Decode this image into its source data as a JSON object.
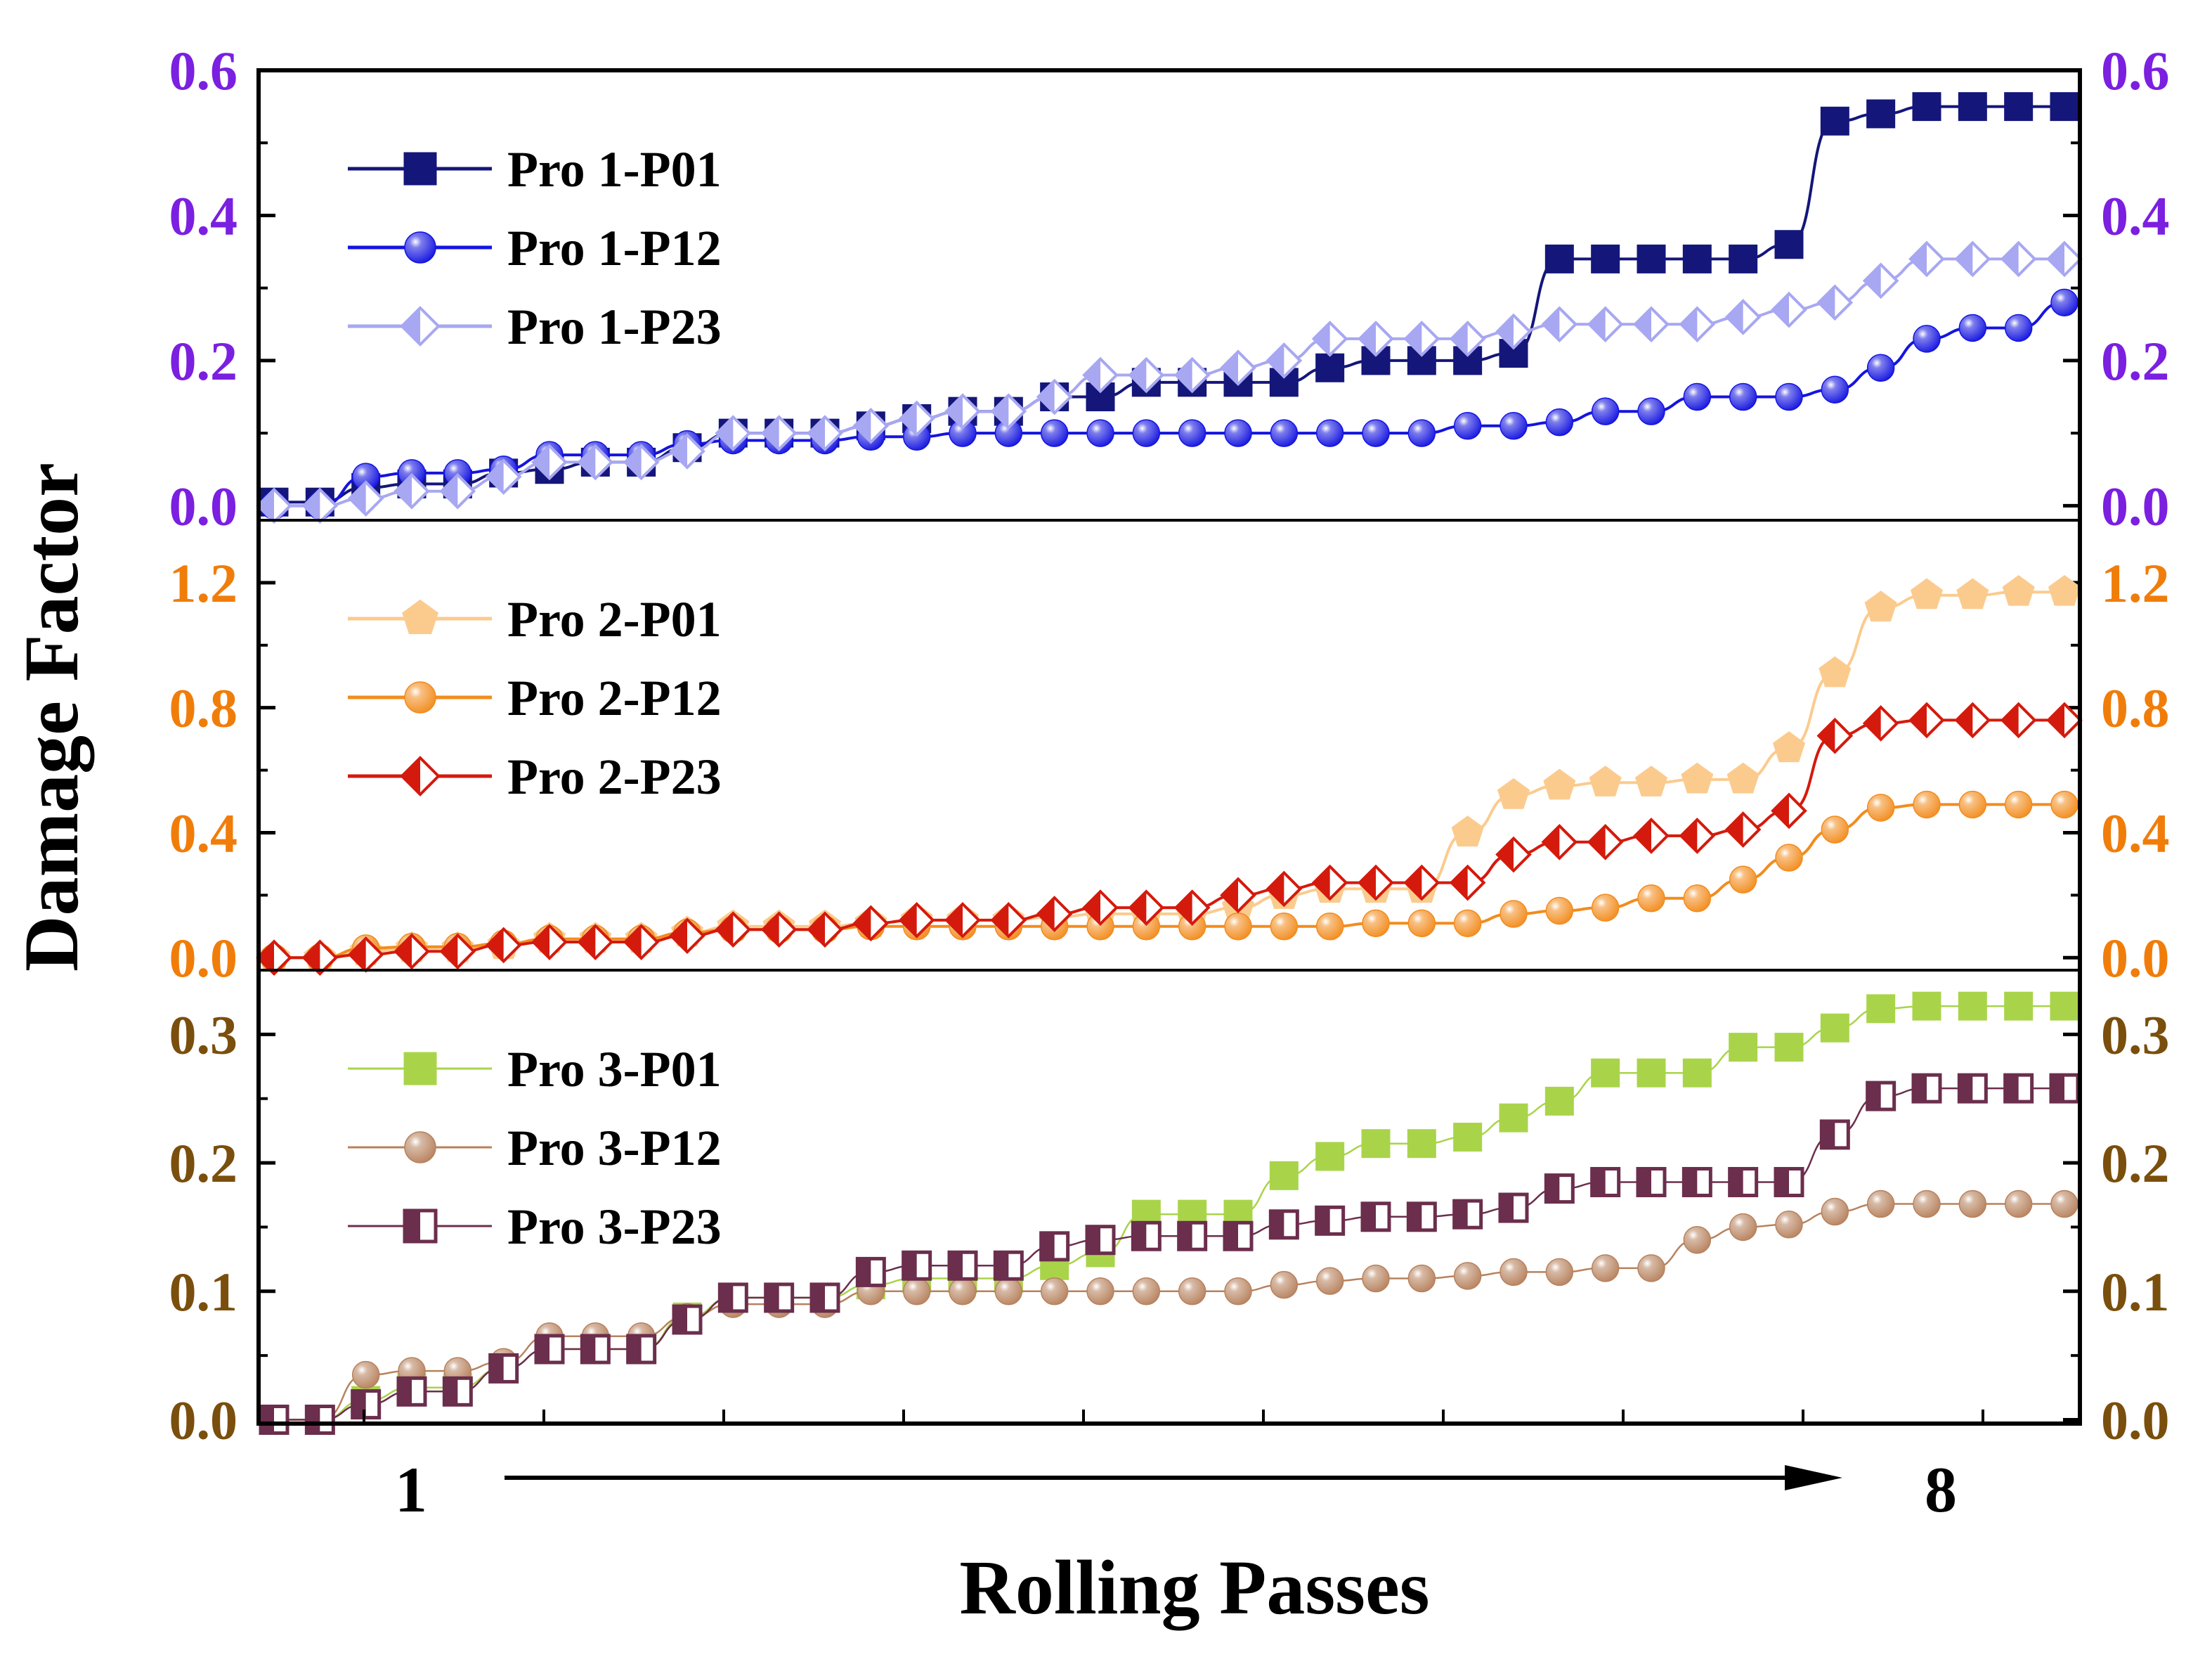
{
  "chart_data": {
    "type": "line",
    "xlabel": "Rolling Passes",
    "ylabel": "Damage Factor",
    "pass_start_label": "1",
    "pass_end_label": "8",
    "x_range": [
      1,
      40
    ],
    "panels": [
      {
        "name": "panel-1",
        "tick_color": "#7B1FE0",
        "ylim": [
          -0.02,
          0.6
        ],
        "yticks": [
          0.0,
          0.2,
          0.4,
          0.6
        ],
        "ytick_labels": [
          "0.0",
          "0.2",
          "0.4",
          "0.6"
        ],
        "series": [
          {
            "name": "Pro 1-P01",
            "color": "#14167A",
            "marker": "square",
            "style": "filled",
            "values": [
              0.005,
              0.005,
              0.025,
              0.03,
              0.03,
              0.045,
              0.05,
              0.06,
              0.06,
              0.08,
              0.1,
              0.1,
              0.1,
              0.11,
              0.12,
              0.13,
              0.13,
              0.15,
              0.15,
              0.17,
              0.17,
              0.17,
              0.17,
              0.19,
              0.2,
              0.2,
              0.2,
              0.21,
              0.34,
              0.34,
              0.34,
              0.34,
              0.34,
              0.36,
              0.53,
              0.54,
              0.55,
              0.55,
              0.55,
              0.55
            ]
          },
          {
            "name": "Pro 1-P12",
            "color": "#1414E0",
            "marker": "circle",
            "style": "sphere",
            "values": [
              0.0,
              0.0,
              0.04,
              0.045,
              0.045,
              0.05,
              0.07,
              0.07,
              0.07,
              0.085,
              0.09,
              0.09,
              0.09,
              0.095,
              0.095,
              0.1,
              0.1,
              0.1,
              0.1,
              0.1,
              0.1,
              0.1,
              0.1,
              0.1,
              0.1,
              0.1,
              0.11,
              0.11,
              0.115,
              0.13,
              0.13,
              0.15,
              0.15,
              0.15,
              0.16,
              0.19,
              0.23,
              0.245,
              0.245,
              0.28
            ]
          },
          {
            "name": "Pro 1-P23",
            "color": "#A7A7F2",
            "marker": "diamond",
            "style": "half",
            "values": [
              0.0,
              0.0,
              0.01,
              0.02,
              0.02,
              0.04,
              0.06,
              0.06,
              0.06,
              0.075,
              0.1,
              0.1,
              0.1,
              0.11,
              0.12,
              0.13,
              0.13,
              0.15,
              0.18,
              0.18,
              0.18,
              0.19,
              0.2,
              0.23,
              0.23,
              0.23,
              0.23,
              0.24,
              0.25,
              0.25,
              0.25,
              0.25,
              0.26,
              0.27,
              0.28,
              0.31,
              0.34,
              0.34,
              0.34,
              0.34
            ]
          }
        ]
      },
      {
        "name": "panel-2",
        "tick_color": "#F07D0A",
        "ylim": [
          -0.04,
          1.4
        ],
        "yticks": [
          0.0,
          0.4,
          0.8,
          1.2
        ],
        "ytick_labels": [
          "0.0",
          "0.4",
          "0.8",
          "1.2"
        ],
        "series": [
          {
            "name": "Pro 2-P01",
            "color": "#FBCB8E",
            "marker": "pentagon",
            "style": "filled",
            "values": [
              0.0,
              0.0,
              0.02,
              0.03,
              0.03,
              0.04,
              0.06,
              0.06,
              0.06,
              0.08,
              0.1,
              0.1,
              0.1,
              0.11,
              0.12,
              0.12,
              0.12,
              0.13,
              0.14,
              0.14,
              0.14,
              0.16,
              0.2,
              0.22,
              0.22,
              0.22,
              0.4,
              0.52,
              0.55,
              0.56,
              0.56,
              0.57,
              0.57,
              0.67,
              0.91,
              1.12,
              1.16,
              1.16,
              1.17,
              1.17
            ]
          },
          {
            "name": "Pro 2-P12",
            "color": "#F28C1E",
            "marker": "circle",
            "style": "sphere",
            "values": [
              0.0,
              0.0,
              0.03,
              0.035,
              0.035,
              0.045,
              0.06,
              0.06,
              0.06,
              0.08,
              0.09,
              0.09,
              0.09,
              0.1,
              0.1,
              0.1,
              0.1,
              0.1,
              0.1,
              0.1,
              0.1,
              0.1,
              0.1,
              0.1,
              0.11,
              0.11,
              0.11,
              0.14,
              0.15,
              0.16,
              0.19,
              0.19,
              0.25,
              0.32,
              0.41,
              0.48,
              0.49,
              0.49,
              0.49,
              0.49
            ]
          },
          {
            "name": "Pro 2-P23",
            "color": "#D41A0C",
            "marker": "diamond",
            "style": "half",
            "values": [
              0.0,
              0.0,
              0.01,
              0.02,
              0.02,
              0.04,
              0.05,
              0.05,
              0.05,
              0.07,
              0.09,
              0.09,
              0.09,
              0.11,
              0.12,
              0.12,
              0.12,
              0.14,
              0.16,
              0.16,
              0.16,
              0.2,
              0.22,
              0.24,
              0.24,
              0.24,
              0.24,
              0.33,
              0.37,
              0.37,
              0.39,
              0.39,
              0.41,
              0.47,
              0.71,
              0.75,
              0.76,
              0.76,
              0.76,
              0.76
            ]
          }
        ]
      },
      {
        "name": "panel-3",
        "tick_color": "#7A4E0C",
        "ylim": [
          -0.003,
          0.35
        ],
        "yticks": [
          0.0,
          0.1,
          0.2,
          0.3
        ],
        "ytick_labels": [
          "0.0",
          "0.1",
          "0.2",
          "0.3"
        ],
        "series": [
          {
            "name": "Pro 3-P01",
            "color": "#A9D44A",
            "marker": "square",
            "style": "filled",
            "values": [
              0.0,
              0.0,
              0.015,
              0.025,
              0.025,
              0.04,
              0.055,
              0.055,
              0.055,
              0.08,
              0.095,
              0.095,
              0.095,
              0.105,
              0.11,
              0.11,
              0.11,
              0.12,
              0.13,
              0.16,
              0.16,
              0.16,
              0.19,
              0.205,
              0.215,
              0.215,
              0.22,
              0.235,
              0.248,
              0.27,
              0.27,
              0.27,
              0.29,
              0.29,
              0.305,
              0.32,
              0.322,
              0.322,
              0.322,
              0.322
            ]
          },
          {
            "name": "Pro 3-P12",
            "color": "#B7825E",
            "marker": "circle",
            "style": "sphere",
            "values": [
              0.0,
              0.0,
              0.035,
              0.038,
              0.038,
              0.045,
              0.065,
              0.065,
              0.065,
              0.08,
              0.09,
              0.09,
              0.09,
              0.1,
              0.1,
              0.1,
              0.1,
              0.1,
              0.1,
              0.1,
              0.1,
              0.1,
              0.105,
              0.108,
              0.11,
              0.11,
              0.112,
              0.115,
              0.115,
              0.118,
              0.118,
              0.14,
              0.15,
              0.152,
              0.162,
              0.168,
              0.168,
              0.168,
              0.168,
              0.168
            ]
          },
          {
            "name": "Pro 3-P23",
            "color": "#6B2E4C",
            "marker": "square",
            "style": "half-open",
            "values": [
              0.0,
              0.0,
              0.012,
              0.022,
              0.022,
              0.04,
              0.055,
              0.055,
              0.055,
              0.078,
              0.095,
              0.095,
              0.095,
              0.115,
              0.12,
              0.12,
              0.12,
              0.135,
              0.14,
              0.143,
              0.143,
              0.143,
              0.152,
              0.155,
              0.158,
              0.158,
              0.16,
              0.165,
              0.18,
              0.185,
              0.185,
              0.185,
              0.185,
              0.185,
              0.222,
              0.252,
              0.258,
              0.258,
              0.258,
              0.258
            ]
          }
        ]
      }
    ]
  }
}
